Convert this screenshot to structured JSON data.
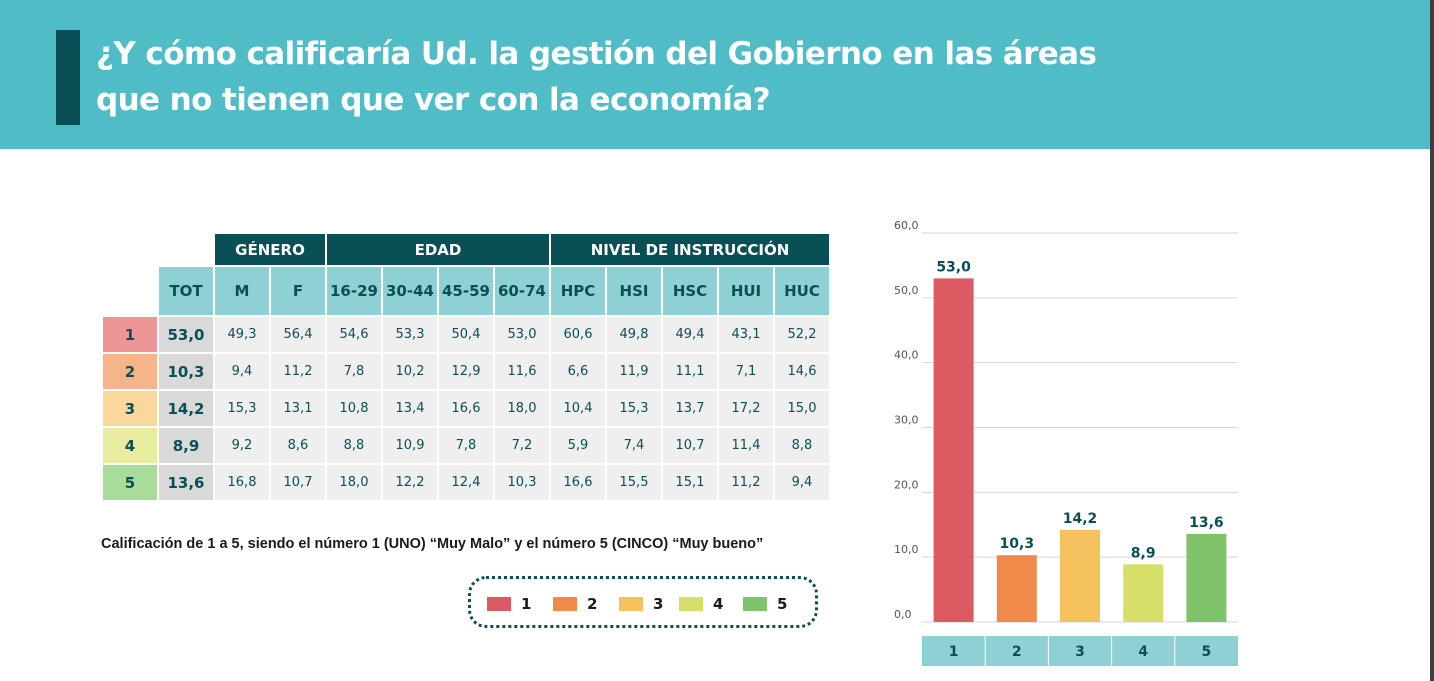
{
  "header": {
    "title_line1": "¿Y cómo calificaría Ud. la gestión del Gobierno en las áreas",
    "title_line2": "que no tienen que ver con la economía?"
  },
  "table": {
    "groups": [
      {
        "label": "GÉNERO",
        "span": 2
      },
      {
        "label": "EDAD",
        "span": 4
      },
      {
        "label": "NIVEL DE INSTRUCCIÓN",
        "span": 5
      }
    ],
    "columns": [
      "TOT",
      "M",
      "F",
      "16-29",
      "30-44",
      "45-59",
      "60-74",
      "HPC",
      "HSI",
      "HSC",
      "HUI",
      "HUC"
    ],
    "rows": [
      {
        "label": "1",
        "color": "#ee9696",
        "values": [
          "53,0",
          "49,3",
          "56,4",
          "54,6",
          "53,3",
          "50,4",
          "53,0",
          "60,6",
          "49,8",
          "49,4",
          "43,1",
          "52,2"
        ]
      },
      {
        "label": "2",
        "color": "#f5b48a",
        "values": [
          "10,3",
          "9,4",
          "11,2",
          "7,8",
          "10,2",
          "12,9",
          "11,6",
          "6,6",
          "11,9",
          "11,1",
          "7,1",
          "14,6"
        ]
      },
      {
        "label": "3",
        "color": "#fad79a",
        "values": [
          "14,2",
          "15,3",
          "13,1",
          "10,8",
          "13,4",
          "16,6",
          "18,0",
          "10,4",
          "15,3",
          "13,7",
          "17,2",
          "15,0"
        ]
      },
      {
        "label": "4",
        "color": "#e7ec9e",
        "values": [
          "8,9",
          "9,2",
          "8,6",
          "8,8",
          "10,9",
          "7,8",
          "7,2",
          "5,9",
          "7,4",
          "10,7",
          "11,4",
          "8,8"
        ]
      },
      {
        "label": "5",
        "color": "#a9dc9a",
        "values": [
          "13,6",
          "16,8",
          "10,7",
          "18,0",
          "12,2",
          "12,4",
          "10,3",
          "16,6",
          "15,5",
          "15,1",
          "11,2",
          "9,4"
        ]
      }
    ]
  },
  "caption": "Calificación de 1 a 5, siendo el número 1 (UNO) “Muy Malo” y el número   5 (CINCO) “Muy bueno”",
  "legend": [
    {
      "label": "1",
      "color": "#dc5b62"
    },
    {
      "label": "2",
      "color": "#f08a4b"
    },
    {
      "label": "3",
      "color": "#f6c25e"
    },
    {
      "label": "4",
      "color": "#d5df6a"
    },
    {
      "label": "5",
      "color": "#7fc46a"
    }
  ],
  "chart_data": {
    "type": "bar",
    "categories": [
      "1",
      "2",
      "3",
      "4",
      "5"
    ],
    "values": [
      53.0,
      10.3,
      14.2,
      8.9,
      13.6
    ],
    "value_labels": [
      "53,0",
      "10,3",
      "14,2",
      "8,9",
      "13,6"
    ],
    "colors": [
      "#dc5b62",
      "#f08a4b",
      "#f6c25e",
      "#d5df6a",
      "#7fc46a"
    ],
    "ylim": [
      0,
      60
    ],
    "yticks": [
      0,
      10,
      20,
      30,
      40,
      50,
      60
    ],
    "ytick_labels": [
      "0,0",
      "10,0",
      "20,0",
      "30,0",
      "40,0",
      "50,0",
      "60,0"
    ],
    "grid": true,
    "category_band_color": "#8fd0d5"
  }
}
